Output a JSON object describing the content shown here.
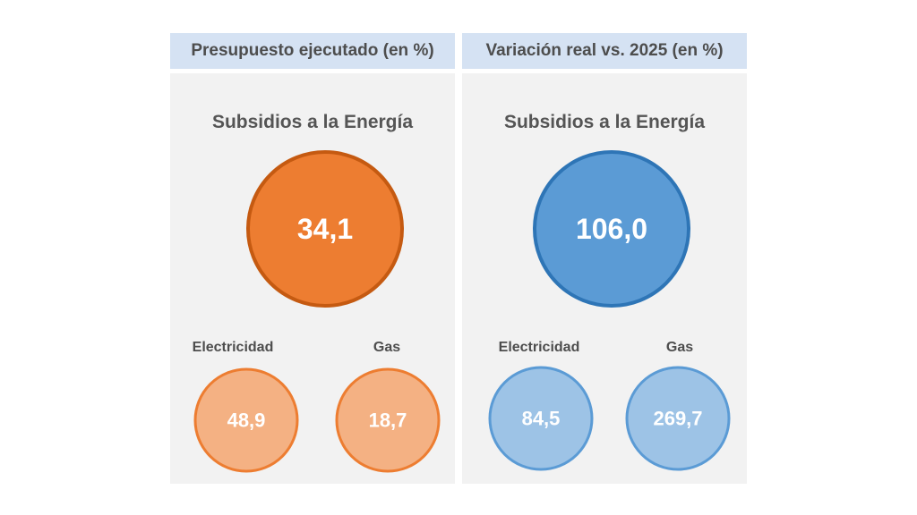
{
  "chart_data": [
    {
      "type": "bubble",
      "title": "Presupuesto ejecutado (en %)",
      "subtitle": "Subsidios a la Energía",
      "total": {
        "label": "Subsidios a la Energía",
        "value": "34,1"
      },
      "categories": [
        "Electricidad",
        "Gas"
      ],
      "values": [
        "48,9",
        "18,7"
      ],
      "colors": {
        "main_fill": "#ed7d31",
        "main_stroke": "#c55a11",
        "sub_fill": "#f4b183",
        "sub_stroke": "#ed7d31"
      }
    },
    {
      "type": "bubble",
      "title": "Variación real vs. 2025 (en %)",
      "subtitle": "Subsidios a la Energía",
      "total": {
        "label": "Subsidios a la Energía",
        "value": "106,0"
      },
      "categories": [
        "Electricidad",
        "Gas"
      ],
      "values": [
        "84,5",
        "269,7"
      ],
      "colors": {
        "main_fill": "#5b9bd5",
        "main_stroke": "#2e75b6",
        "sub_fill": "#9dc3e6",
        "sub_stroke": "#5b9bd5"
      }
    }
  ]
}
